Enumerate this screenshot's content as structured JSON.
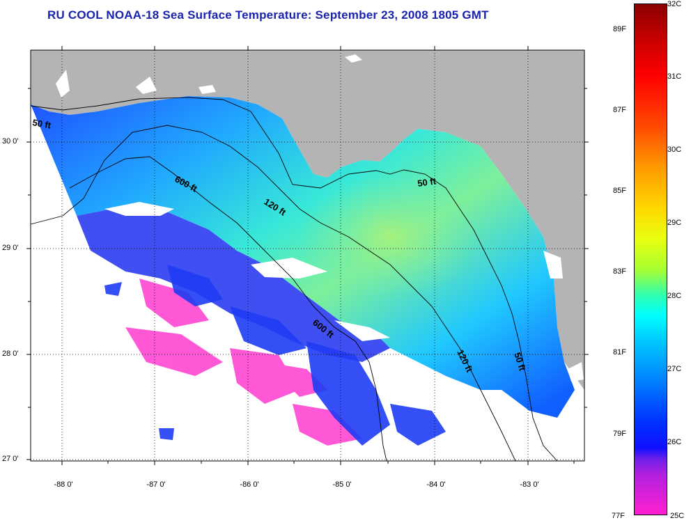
{
  "title": "RU COOL  NOAA-18  Sea Surface Temperature:  September 23, 2008 1805 GMT",
  "map": {
    "land_color": "#b4b4b4",
    "no_data_color": "#ffffff",
    "y_labels": [
      "30 0'",
      "29 0'",
      "28 0'",
      "27 0'"
    ],
    "x_labels": [
      "-88 0'",
      "-87 0'",
      "-86 0'",
      "-85 0'",
      "-84 0'",
      "-83 0'"
    ],
    "contour_labels": [
      "50 ft",
      "600 ft",
      "120 ft",
      "50 ft",
      "600 ft",
      "120 ft",
      "50 ft"
    ]
  },
  "colorbar": {
    "celsius": [
      "32C",
      "31C",
      "30C",
      "29C",
      "28C",
      "27C",
      "26C",
      "25C"
    ],
    "fahrenheit": [
      "89F",
      "87F",
      "85F",
      "83F",
      "81F",
      "79F",
      "77F"
    ]
  }
}
